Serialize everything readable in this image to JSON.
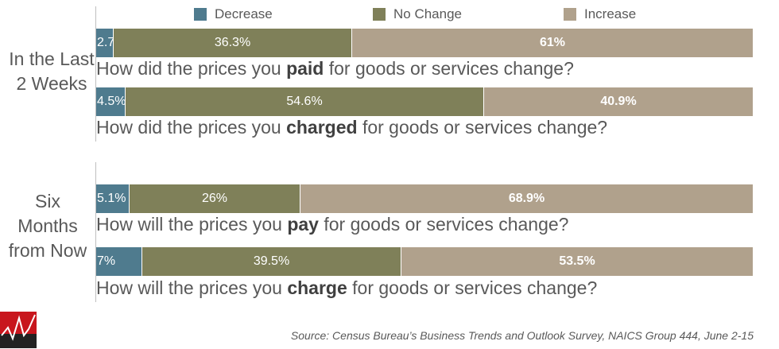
{
  "colors": {
    "decrease": "#4f7b8e",
    "no_change": "#7f8059",
    "increase": "#b0a18c"
  },
  "legend": [
    {
      "label": "Decrease",
      "color": "#4f7b8e"
    },
    {
      "label": "No Change",
      "color": "#7f8059"
    },
    {
      "label": "Increase",
      "color": "#b0a18c"
    }
  ],
  "groups": [
    "In the Last 2 Weeks",
    "Six Months from Now"
  ],
  "chart_data": {
    "type": "bar",
    "orientation": "horizontal",
    "stacked": true,
    "normalized_percent": true,
    "series": [
      {
        "name": "Decrease",
        "values": [
          2.7,
          4.5,
          5.1,
          7
        ]
      },
      {
        "name": "No Change",
        "values": [
          36.3,
          54.6,
          26,
          39.5
        ]
      },
      {
        "name": "Increase",
        "values": [
          61,
          40.9,
          68.9,
          53.5
        ]
      }
    ],
    "value_labels": [
      [
        "2.7%",
        "36.3%",
        "61%"
      ],
      [
        "4.5%",
        "54.6%",
        "40.9%"
      ],
      [
        "5.1%",
        "26%",
        "68.9%"
      ],
      [
        "7%",
        "39.5%",
        "53.5%"
      ]
    ],
    "questions": [
      {
        "pre": "How did the prices you ",
        "bold": "paid",
        "post": " for goods or services change?"
      },
      {
        "pre": "How did the prices you ",
        "bold": "charged",
        "post": " for goods or services change?"
      },
      {
        "pre": "How will the prices you ",
        "bold": "pay",
        "post": " for goods or services change?"
      },
      {
        "pre": "How will the prices you ",
        "bold": "charge",
        "post": " for goods or services change?"
      }
    ],
    "legend_position": "top"
  },
  "source": "Source: Census Bureau’s Business Trends and Outlook Survey, NAICS Group 444, June 2-15",
  "logo_icon": "chart-line-logo"
}
